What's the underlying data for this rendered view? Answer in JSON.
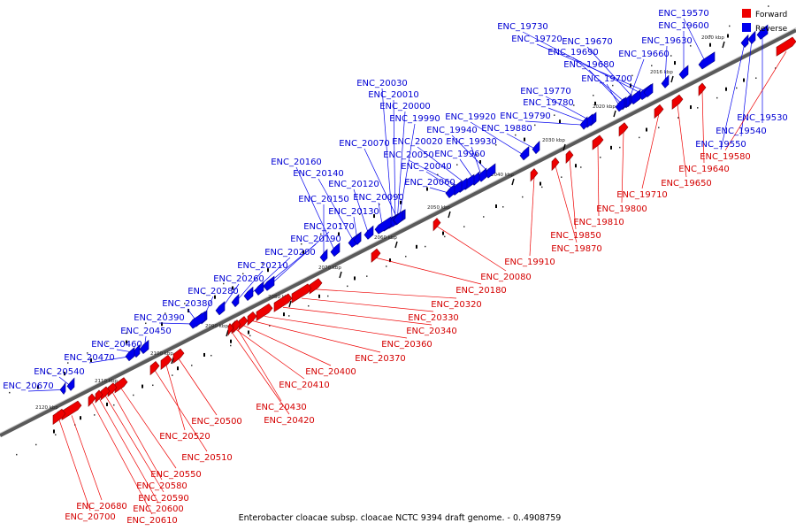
{
  "caption": "Enterobacter cloacae subsp. cloacae NCTC 9394 draft genome. - 0..4908759",
  "legend": {
    "forward": "Forward",
    "reverse": "Reverse"
  },
  "colors": {
    "forward": "#ee0000",
    "reverse": "#0000ee",
    "backbone": "#777777"
  },
  "scale_ticks": [
    "2000 kbp",
    "2016 kbp",
    "2020 kbp",
    "2030 kbp",
    "2040 kbp",
    "2050 kbp",
    "2060 kbp",
    "2070 kbp",
    "2080 kbp",
    "2090 kbp",
    "2100 kbp",
    "2110 kbp",
    "2120 kbp"
  ],
  "reverse_genes": [
    "ENC_19570",
    "ENC_19600",
    "ENC_19630",
    "ENC_19730",
    "ENC_19720",
    "ENC_19670",
    "ENC_19660",
    "ENC_19690",
    "ENC_19680",
    "ENC_19700",
    "ENC_19530",
    "ENC_19540",
    "ENC_19550",
    "ENC_19770",
    "ENC_19780",
    "ENC_19790",
    "ENC_19880",
    "ENC_19920",
    "ENC_19940",
    "ENC_19930",
    "ENC_19960",
    "ENC_20030",
    "ENC_20010",
    "ENC_20000",
    "ENC_19990",
    "ENC_20070",
    "ENC_20020",
    "ENC_20050",
    "ENC_20040",
    "ENC_20060",
    "ENC_20160",
    "ENC_20140",
    "ENC_20120",
    "ENC_20090",
    "ENC_20150",
    "ENC_20130",
    "ENC_20170",
    "ENC_20190",
    "ENC_20200",
    "ENC_20210",
    "ENC_20260",
    "ENC_20280",
    "ENC_20380",
    "ENC_20390",
    "ENC_20450",
    "ENC_20460",
    "ENC_20470",
    "ENC_20540",
    "ENC_20670"
  ],
  "forward_genes": [
    "ENC_19580",
    "ENC_19640",
    "ENC_19650",
    "ENC_19710",
    "ENC_19800",
    "ENC_19810",
    "ENC_19850",
    "ENC_19870",
    "ENC_19910",
    "ENC_20080",
    "ENC_20180",
    "ENC_20320",
    "ENC_20330",
    "ENC_20340",
    "ENC_20360",
    "ENC_20370",
    "ENC_20400",
    "ENC_20410",
    "ENC_20430",
    "ENC_20420",
    "ENC_20500",
    "ENC_20520",
    "ENC_20510",
    "ENC_20550",
    "ENC_20580",
    "ENC_20590",
    "ENC_20600",
    "ENC_20610",
    "ENC_20680",
    "ENC_20700"
  ]
}
